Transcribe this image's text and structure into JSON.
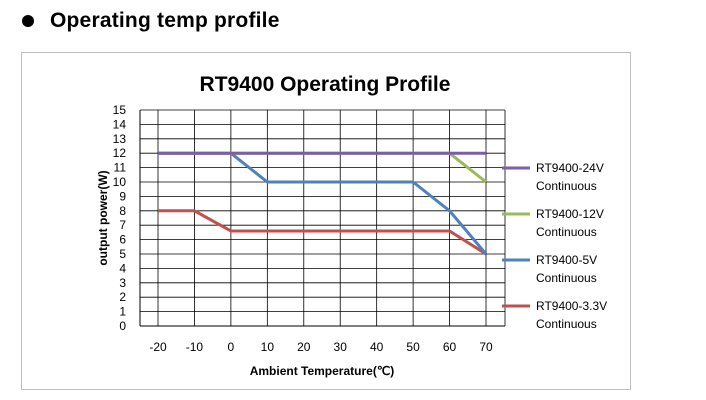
{
  "heading": {
    "bullet_icon": "bullet-dot-icon",
    "text": "Operating temp profile"
  },
  "chart_data": {
    "type": "line",
    "title": "RT9400 Operating Profile",
    "xlabel": "Ambient Temperature(℃)",
    "ylabel": "output power(W)",
    "categories": [
      -20,
      -10,
      0,
      10,
      20,
      30,
      40,
      50,
      60,
      70
    ],
    "xticks": [
      "-20",
      "-10",
      "0",
      "10",
      "20",
      "30",
      "40",
      "50",
      "60",
      "70"
    ],
    "yticks": [
      "0",
      "1",
      "2",
      "3",
      "4",
      "5",
      "6",
      "7",
      "8",
      "9",
      "10",
      "11",
      "12",
      "13",
      "14",
      "15"
    ],
    "ylim": [
      0,
      15
    ],
    "grid": true,
    "legend_position": "right",
    "series": [
      {
        "name": "RT9400-24V",
        "name_line2": "Continuous",
        "color": "#7b5ea7",
        "values": [
          12,
          12,
          12,
          12,
          12,
          12,
          12,
          12,
          12,
          12
        ]
      },
      {
        "name": "RT9400-12V",
        "name_line2": "Continuous",
        "color": "#9bbb59",
        "values": [
          12,
          12,
          12,
          12,
          12,
          12,
          12,
          12,
          12,
          10
        ]
      },
      {
        "name": "RT9400-5V",
        "name_line2": "Continuous",
        "color": "#4f81bd",
        "values": [
          12,
          12,
          12,
          10,
          10,
          10,
          10,
          10,
          8,
          5
        ]
      },
      {
        "name": "RT9400-3.3V",
        "name_line2": "Continuous",
        "color": "#c0504d",
        "values": [
          8,
          8,
          6.6,
          6.6,
          6.6,
          6.6,
          6.6,
          6.6,
          6.6,
          5
        ]
      }
    ]
  }
}
